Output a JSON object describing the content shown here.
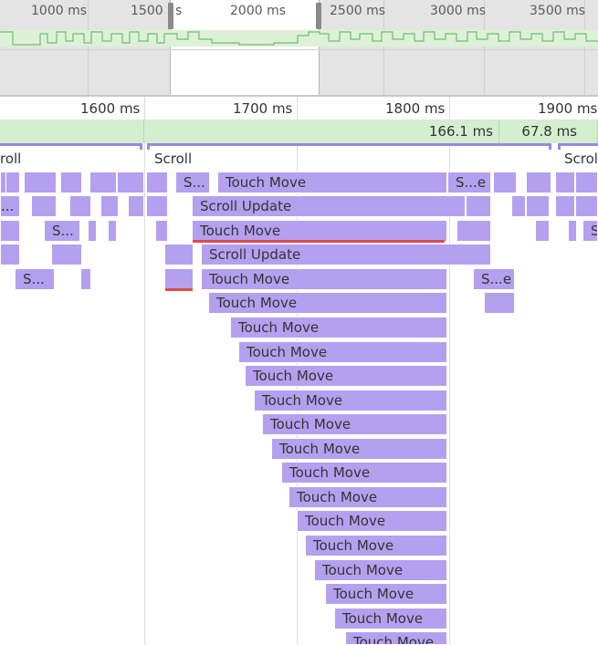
{
  "overview": {
    "ticks": [
      "1000 ms",
      "1500 r",
      "s",
      "2000 ms",
      "2500 ms",
      "3000 ms",
      "3500 ms"
    ]
  },
  "ruler": {
    "ticks": [
      "1600 ms",
      "1700 ms",
      "1800 ms",
      "1900 ms"
    ]
  },
  "frames": [
    "166.1 ms",
    "67.8 ms"
  ],
  "phases": {
    "scroll_left": "roll",
    "scroll_middle": "Scroll",
    "scroll_right": "Scrol"
  },
  "events": {
    "s_ellipsis": "S...",
    "s_e": "S...e",
    "dot_ellipsis": "...",
    "s_right": "S",
    "touch_move": "Touch Move",
    "scroll_update": "Scroll Update"
  },
  "colors": {
    "overview_bg": "#e4e4e4",
    "frame_green": "#d3efcf",
    "event_purple": "#b5a0ef",
    "phase_purple": "#9d87e0",
    "long_task_red": "#e0484a"
  }
}
